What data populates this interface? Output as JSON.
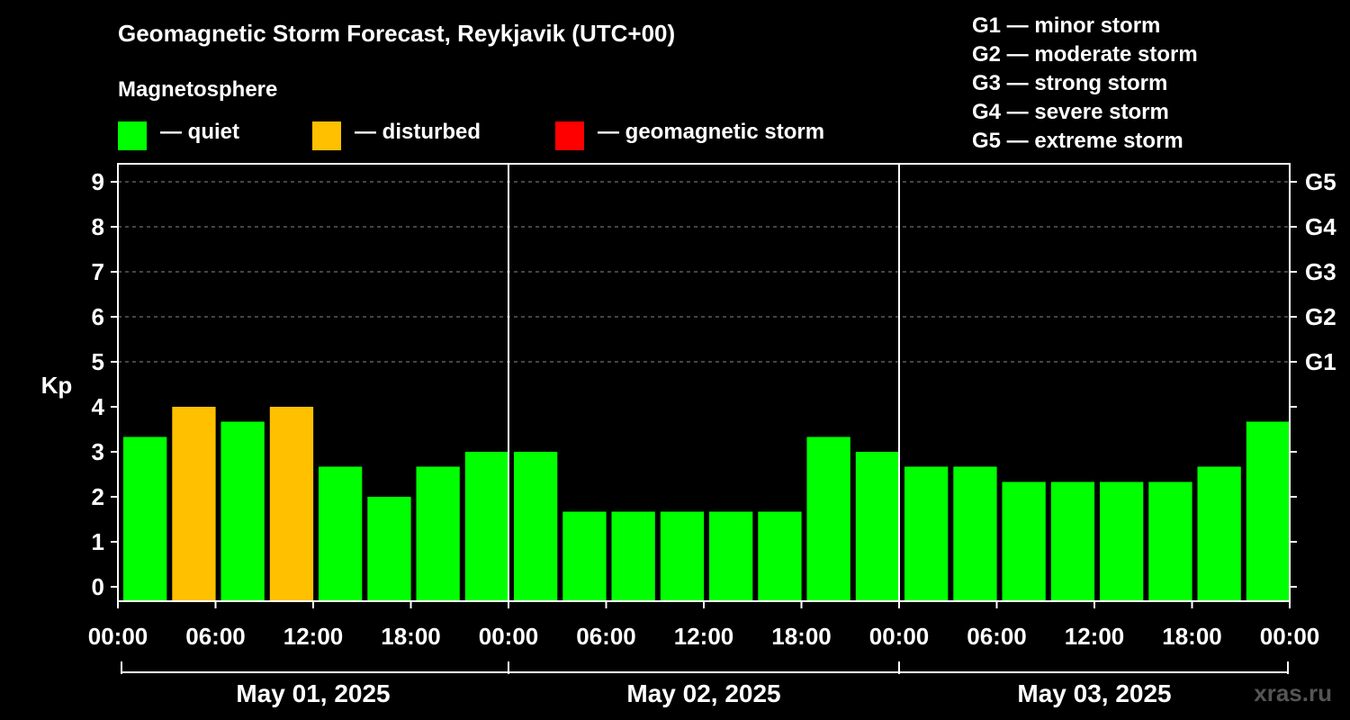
{
  "title": "Geomagnetic Storm Forecast, Reykjavik (UTC+00)",
  "magnetosphere": {
    "title": "Magnetosphere",
    "legend": [
      {
        "label": "— quiet",
        "color": "#00ff00"
      },
      {
        "label": "— disturbed",
        "color": "#ffc000"
      },
      {
        "label": "— geomagnetic storm",
        "color": "#ff0000"
      }
    ]
  },
  "gscale": [
    "G1 — minor storm",
    "G2 — moderate storm",
    "G3 — strong storm",
    "G4 — severe storm",
    "G5 — extreme storm"
  ],
  "watermark": "xras.ru",
  "chart_data": {
    "type": "bar",
    "ylabel": "Kp",
    "ylim": [
      0,
      9
    ],
    "yticks": [
      "0",
      "1",
      "2",
      "3",
      "4",
      "5",
      "6",
      "7",
      "8",
      "9"
    ],
    "right_ticks": [
      {
        "value": 5,
        "label": "G1"
      },
      {
        "value": 6,
        "label": "G2"
      },
      {
        "value": 7,
        "label": "G3"
      },
      {
        "value": 8,
        "label": "G4"
      },
      {
        "value": 9,
        "label": "G5"
      }
    ],
    "grid": true,
    "xtick_labels": [
      "00:00",
      "06:00",
      "12:00",
      "18:00",
      "00:00",
      "06:00",
      "12:00",
      "18:00",
      "00:00",
      "06:00",
      "12:00",
      "18:00",
      "00:00"
    ],
    "days": [
      "May 01, 2025",
      "May 02, 2025",
      "May 03, 2025"
    ],
    "bars_per_day": 8,
    "values": [
      3.33,
      4.0,
      3.67,
      4.0,
      2.67,
      2.0,
      2.67,
      3.0,
      3.0,
      1.67,
      1.67,
      1.67,
      1.67,
      1.67,
      3.33,
      3.0,
      2.67,
      2.67,
      2.33,
      2.33,
      2.33,
      2.33,
      2.67,
      3.67
    ],
    "colors": [
      "#00ff00",
      "#ffc000",
      "#00ff00",
      "#ffc000",
      "#00ff00",
      "#00ff00",
      "#00ff00",
      "#00ff00",
      "#00ff00",
      "#00ff00",
      "#00ff00",
      "#00ff00",
      "#00ff00",
      "#00ff00",
      "#00ff00",
      "#00ff00",
      "#00ff00",
      "#00ff00",
      "#00ff00",
      "#00ff00",
      "#00ff00",
      "#00ff00",
      "#00ff00",
      "#00ff00"
    ]
  }
}
